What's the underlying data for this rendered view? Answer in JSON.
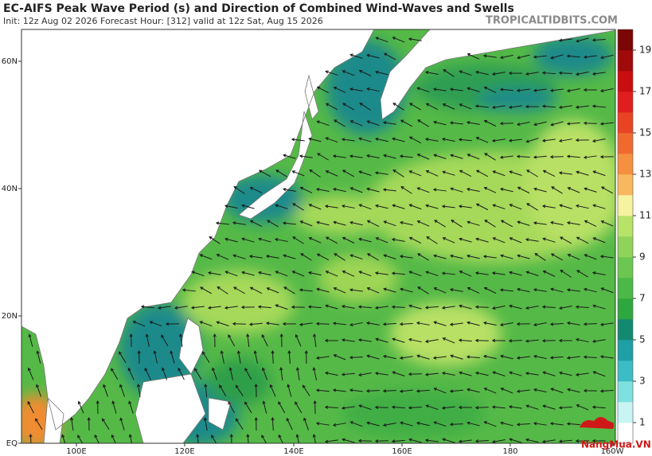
{
  "header": {
    "title": "EC-AIFS Peak Wave Period (s) and Direction of Combined Wind-Waves and Swells",
    "subtitle": "Init: 12z Aug 02 2026   Forecast Hour: [312]   valid at 12z Sat, Aug 15 2026",
    "brand": "TROPICALTIDBITS.COM"
  },
  "axes": {
    "lat_labels": [
      "60N",
      "40N",
      "20N",
      "EQ"
    ],
    "lon_labels": [
      "100E",
      "120E",
      "140E",
      "160E",
      "180",
      "160W"
    ]
  },
  "colorbar": {
    "labels": [
      1,
      3,
      5,
      7,
      9,
      11,
      13,
      15,
      17,
      19
    ]
  },
  "watermark": "NangMua.VN"
}
